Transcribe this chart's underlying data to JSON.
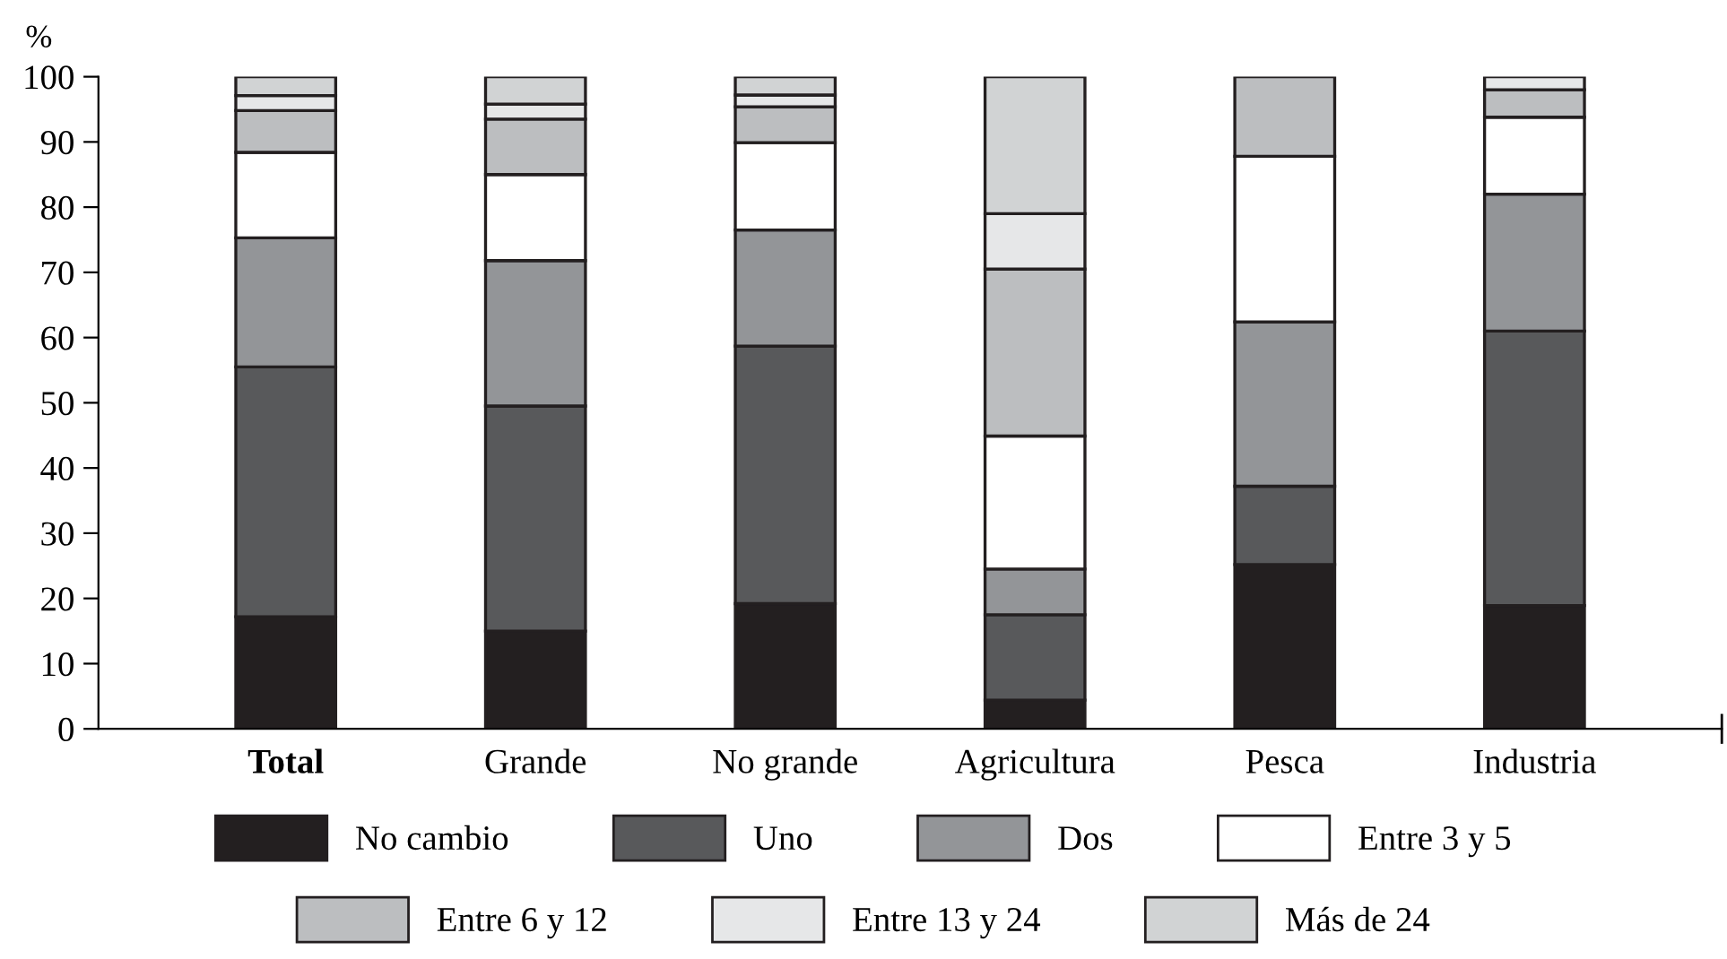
{
  "chart_data": {
    "type": "bar",
    "stacked": true,
    "ylabel": "%",
    "categories": [
      "Total",
      "Grande",
      "No grande",
      "Agricultura",
      "Pesca",
      "Industria"
    ],
    "ylim": [
      0,
      100
    ],
    "yticks": [
      0,
      10,
      20,
      30,
      40,
      50,
      60,
      70,
      80,
      90,
      100
    ],
    "grid": false,
    "legend": "bottom",
    "series": [
      {
        "name": "No cambio",
        "color": "#231f20",
        "values": [
          17.2,
          15,
          19.2,
          4.4,
          25.2,
          18.9
        ]
      },
      {
        "name": "Uno",
        "color": "#58595b",
        "values": [
          38.3,
          34.5,
          39.5,
          13.1,
          12,
          42.1
        ]
      },
      {
        "name": "Dos",
        "color": "#939598",
        "values": [
          19.8,
          22.3,
          17.8,
          7,
          25.2,
          21
        ]
      },
      {
        "name": "Entre 3 y 5",
        "color": "#ffffff",
        "values": [
          13.1,
          13.2,
          13.4,
          20.4,
          25.4,
          11.8
        ]
      },
      {
        "name": "Entre 6 y 12",
        "color": "#bcbec0",
        "values": [
          6.4,
          8.5,
          5.5,
          25.6,
          12.2,
          4.2
        ]
      },
      {
        "name": "Entre 13 y 24",
        "color": "#e6e7e8",
        "values": [
          2.3,
          2.3,
          1.8,
          8.5,
          null,
          2
        ]
      },
      {
        "name": "Más de 24",
        "color": "#d1d3d4",
        "values": [
          2.9,
          4.2,
          2.8,
          21,
          null,
          null
        ]
      }
    ]
  }
}
